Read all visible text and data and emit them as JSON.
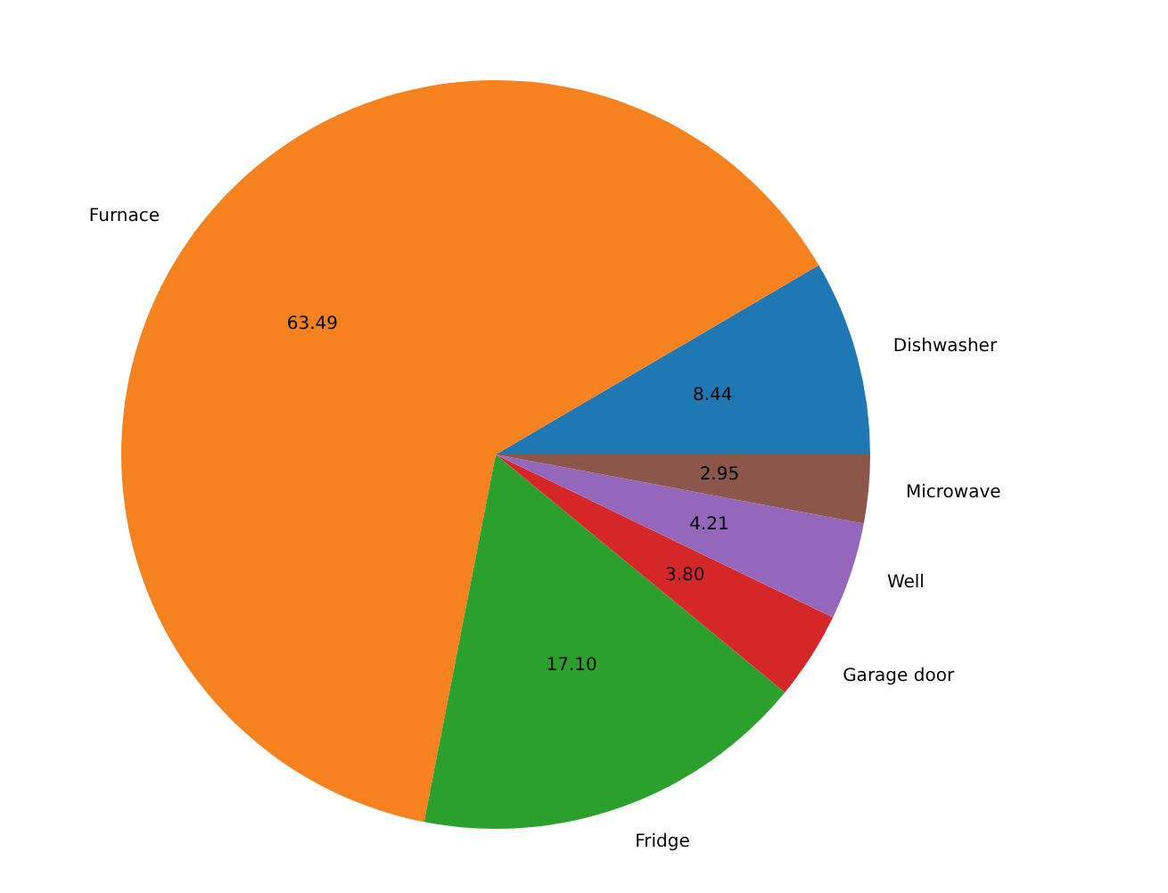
{
  "chart_data": {
    "type": "pie",
    "categories": [
      "Dishwasher",
      "Furnace",
      "Fridge",
      "Garage door",
      "Well",
      "Microwave"
    ],
    "values": [
      8.44,
      63.49,
      17.1,
      3.8,
      4.21,
      2.95
    ],
    "value_labels": [
      "8.44",
      "63.49",
      "17.10",
      "3.80",
      "4.21",
      "2.95"
    ],
    "colors": [
      "#1f77b4",
      "#f5811f",
      "#2ca02c",
      "#d62728",
      "#9467bd",
      "#8c564b"
    ]
  }
}
